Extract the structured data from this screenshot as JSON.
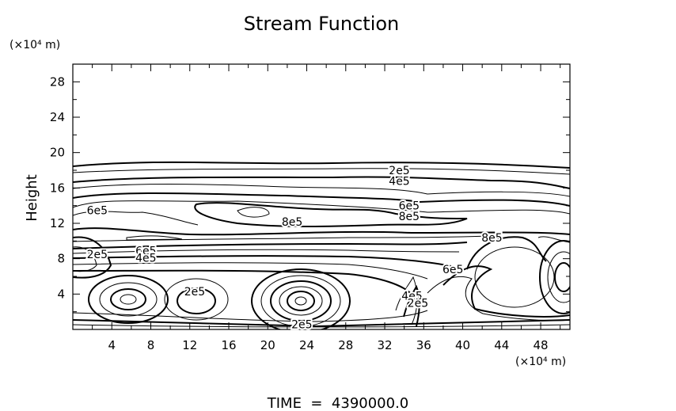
{
  "chart_data": {
    "type": "contour",
    "title": "Stream Function",
    "ylabel": "Height",
    "y_unit": "(×10⁴ m)",
    "x_unit": "(×10⁴ m)",
    "footer": "TIME  =  4390000.0",
    "xlim": [
      0,
      51
    ],
    "ylim": [
      0,
      30
    ],
    "x_ticks": [
      4,
      8,
      12,
      16,
      20,
      24,
      28,
      32,
      36,
      40,
      44,
      48
    ],
    "y_ticks": [
      4,
      8,
      12,
      16,
      20,
      24,
      28
    ],
    "contour_labels": [
      {
        "text": "2e5",
        "x": 33.5,
        "y": 18.0
      },
      {
        "text": "4e5",
        "x": 33.5,
        "y": 16.8
      },
      {
        "text": "6e5",
        "x": 34.5,
        "y": 14.0
      },
      {
        "text": "8e5",
        "x": 34.5,
        "y": 12.8
      },
      {
        "text": "8e5",
        "x": 22.5,
        "y": 12.2
      },
      {
        "text": "6e5",
        "x": 2.5,
        "y": 13.5
      },
      {
        "text": "2e5",
        "x": 2.5,
        "y": 8.5
      },
      {
        "text": "6e5",
        "x": 7.5,
        "y": 8.9
      },
      {
        "text": "4e5",
        "x": 7.5,
        "y": 8.1
      },
      {
        "text": "2e5",
        "x": 12.5,
        "y": 4.3
      },
      {
        "text": "2e5",
        "x": 23.5,
        "y": 0.6
      },
      {
        "text": "8e5",
        "x": 43.0,
        "y": 10.4
      },
      {
        "text": "6e5",
        "x": 39.0,
        "y": 6.8
      },
      {
        "text": "4e5",
        "x": 34.8,
        "y": 3.8
      },
      {
        "text": "2e5",
        "x": 35.4,
        "y": 3.0
      }
    ]
  }
}
